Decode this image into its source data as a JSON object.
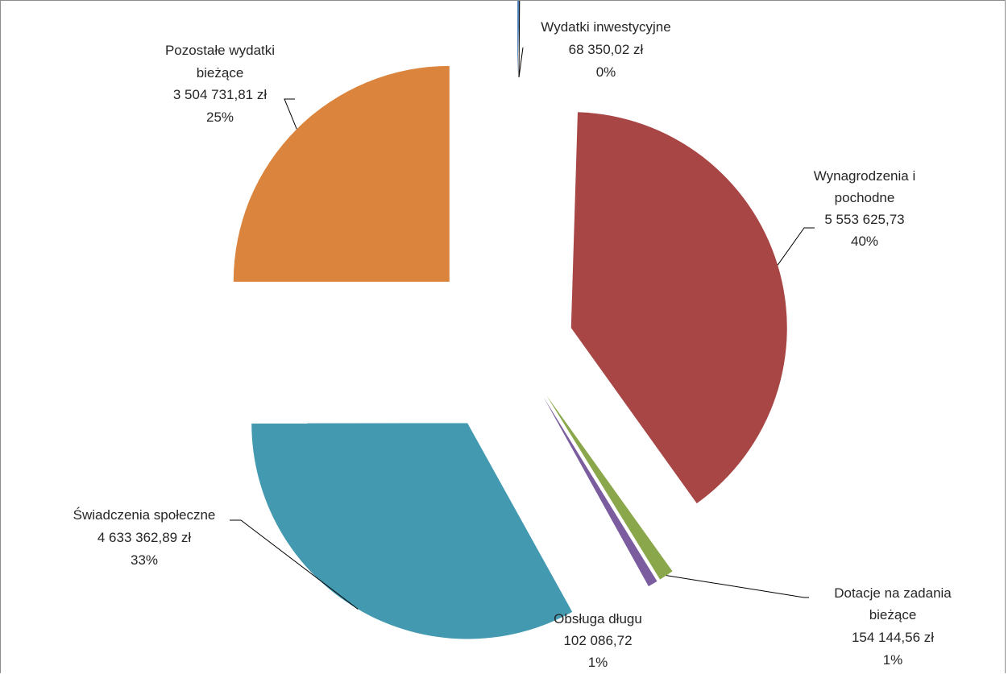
{
  "chart_data": {
    "type": "pie",
    "title": "",
    "exploded": true,
    "slices": [
      {
        "name": "Wydatki inwestycyjne",
        "value": 68350.02,
        "value_label": "68 350,02 zł",
        "percent_label": "0%",
        "color": "#4a7ebb"
      },
      {
        "name": "Wynagrodzenia i pochodne",
        "value": 5553625.73,
        "value_label": "5 553 625,73",
        "percent_label": "40%",
        "color": "#a84645"
      },
      {
        "name": "Dotacje na zadania bieżące",
        "value": 154144.56,
        "value_label": "154 144,56 zł",
        "percent_label": "1%",
        "color": "#8aa84b"
      },
      {
        "name": "Obsługa długu",
        "value": 102086.72,
        "value_label": "102 086,72",
        "percent_label": "1%",
        "color": "#7b5c9e"
      },
      {
        "name": "Świadczenia społeczne",
        "value": 4633362.89,
        "value_label": "4 633 362,89 zł",
        "percent_label": "33%",
        "color": "#4299b0"
      },
      {
        "name": "Pozostałe wydatki bieżące",
        "value": 3504731.81,
        "value_label": "3 504 731,81 zł",
        "percent_label": "25%",
        "color": "#db843d"
      }
    ]
  }
}
